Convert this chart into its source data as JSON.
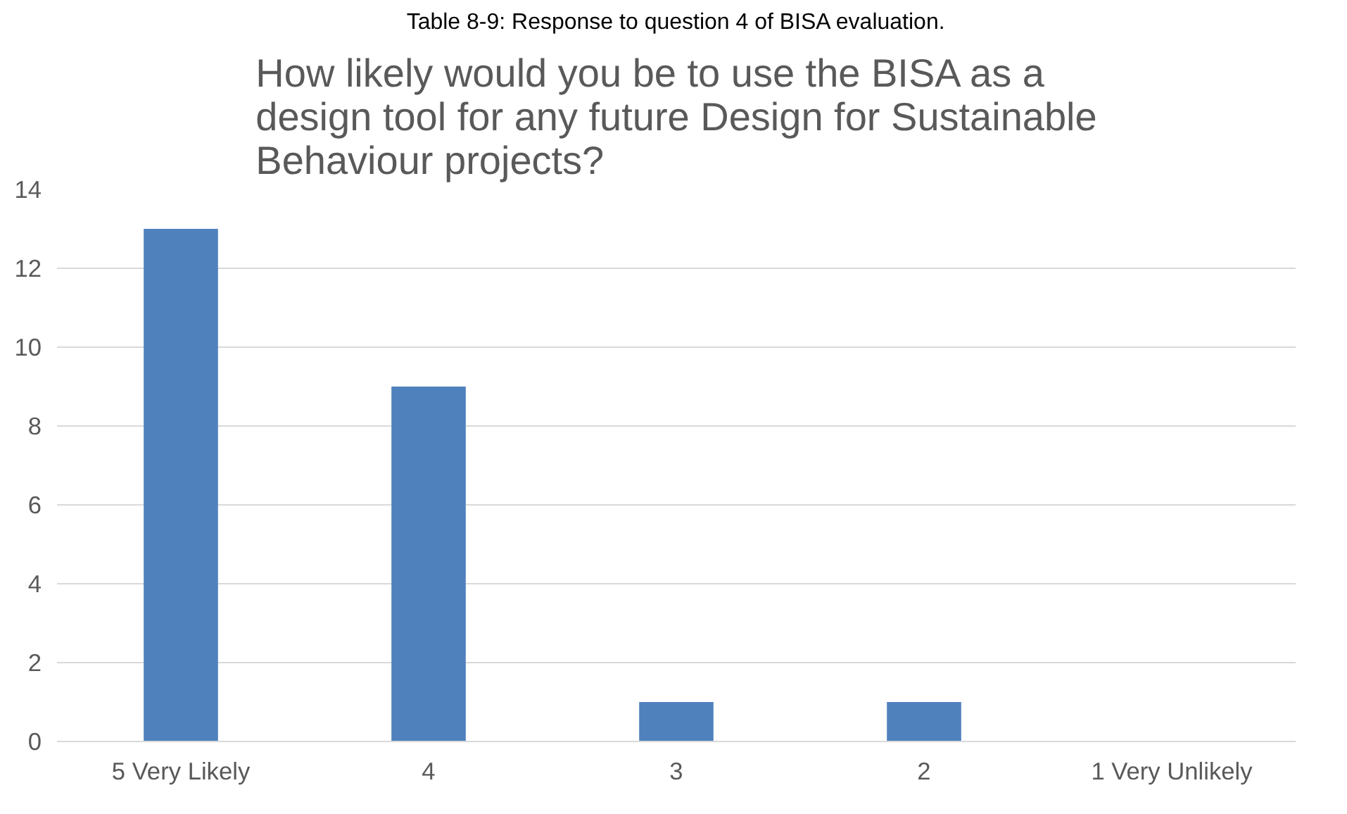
{
  "chart_data": {
    "type": "bar",
    "title": "How likely would you be to use the BISA as a design tool for any future Design for Sustainable Behaviour  projects?",
    "annotations": [
      "Table 8-9: Response to question 4 of BISA evaluation."
    ],
    "categories": [
      "5 Very Likely",
      "4",
      "3",
      "2",
      "1 Very Unlikely"
    ],
    "values": [
      13,
      9,
      1,
      1,
      0
    ],
    "color": "#4f81bd",
    "ylim": [
      0,
      14
    ],
    "yticks": [
      0,
      2,
      4,
      6,
      8,
      10,
      12,
      14
    ],
    "grid": "y"
  }
}
